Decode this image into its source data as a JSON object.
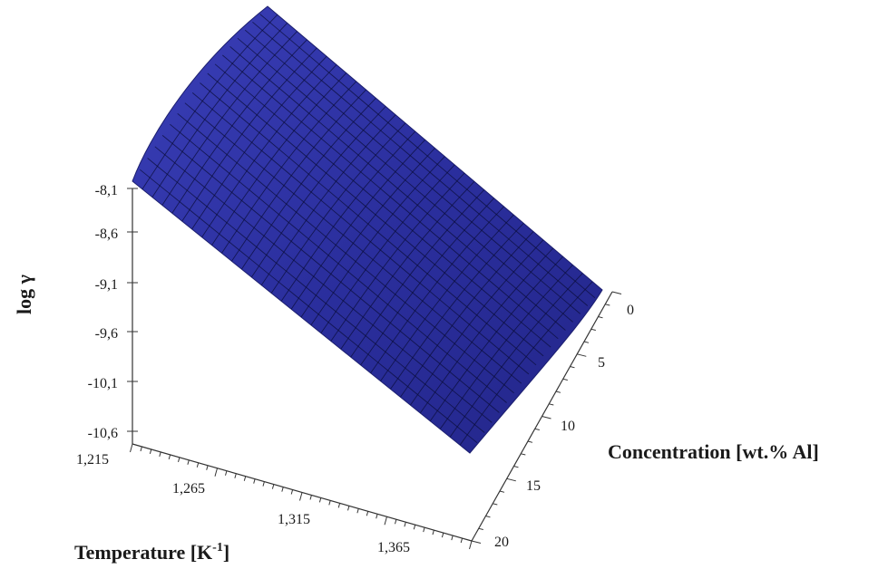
{
  "chart_data": {
    "type": "surface3d",
    "z_axis": {
      "label": "log γ",
      "ticks": [
        "-8,1",
        "-8,6",
        "-9,1",
        "-9,6",
        "-10,1",
        "-10,6"
      ]
    },
    "x_axis": {
      "label": "Temperature [K",
      "label_sup": "-1",
      "label_end": "]",
      "ticks": [
        "1,215",
        "1,265",
        "1,315",
        "1,365"
      ]
    },
    "y_axis": {
      "label": "Concentration [wt.% Al]",
      "ticks": [
        "0",
        "5",
        "10",
        "15",
        "20"
      ]
    },
    "surface_color": "#2b2f9e",
    "mesh_color": "#0b0d3a"
  }
}
